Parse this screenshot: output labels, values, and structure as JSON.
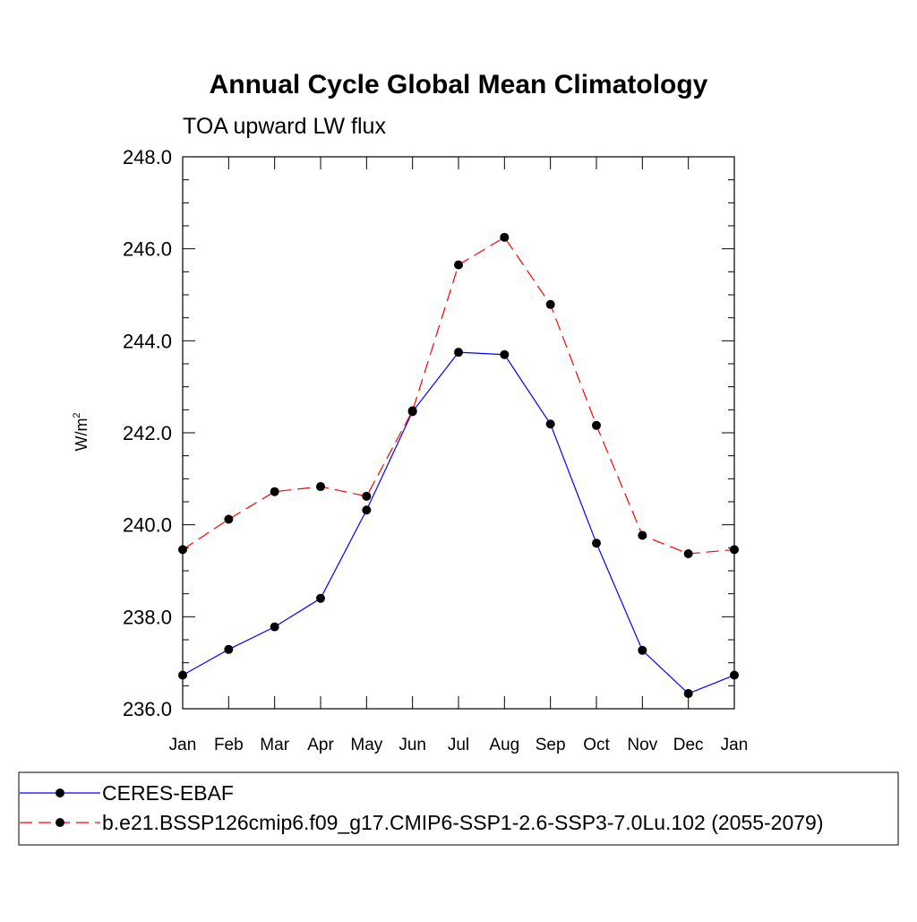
{
  "chart_data": {
    "type": "line",
    "title": "Annual Cycle Global Mean Climatology",
    "subtitle": "TOA upward LW flux",
    "ylabel": "W/m",
    "ylabel_superscript": "2",
    "xlabel": "",
    "categories": [
      "Jan",
      "Feb",
      "Mar",
      "Apr",
      "May",
      "Jun",
      "Jul",
      "Aug",
      "Sep",
      "Oct",
      "Nov",
      "Dec",
      "Jan"
    ],
    "ylim": [
      236.0,
      248.0
    ],
    "yticks": [
      236.0,
      238.0,
      240.0,
      242.0,
      244.0,
      246.0,
      248.0
    ],
    "ytick_labels": [
      "236.0",
      "238.0",
      "240.0",
      "242.0",
      "244.0",
      "246.0",
      "248.0"
    ],
    "grid": false,
    "legend_position": "bottom",
    "series": [
      {
        "name": "CERES-EBAF",
        "color": "#0000ff",
        "line_style": "solid",
        "marker": "filled-circle",
        "values": [
          236.73,
          237.29,
          237.78,
          238.4,
          240.32,
          242.46,
          243.75,
          243.7,
          242.19,
          239.6,
          237.27,
          236.33,
          236.73
        ]
      },
      {
        "name": "b.e21.BSSP126cmip6.f09_g17.CMIP6-SSP1-2.6-SSP3-7.0Lu.102 (2055-2079)",
        "color": "#ff0000",
        "line_style": "dashed",
        "marker": "filled-circle",
        "values": [
          239.46,
          240.12,
          240.72,
          240.83,
          240.62,
          242.48,
          245.65,
          246.25,
          244.79,
          242.16,
          239.77,
          239.37,
          239.46
        ]
      }
    ]
  }
}
